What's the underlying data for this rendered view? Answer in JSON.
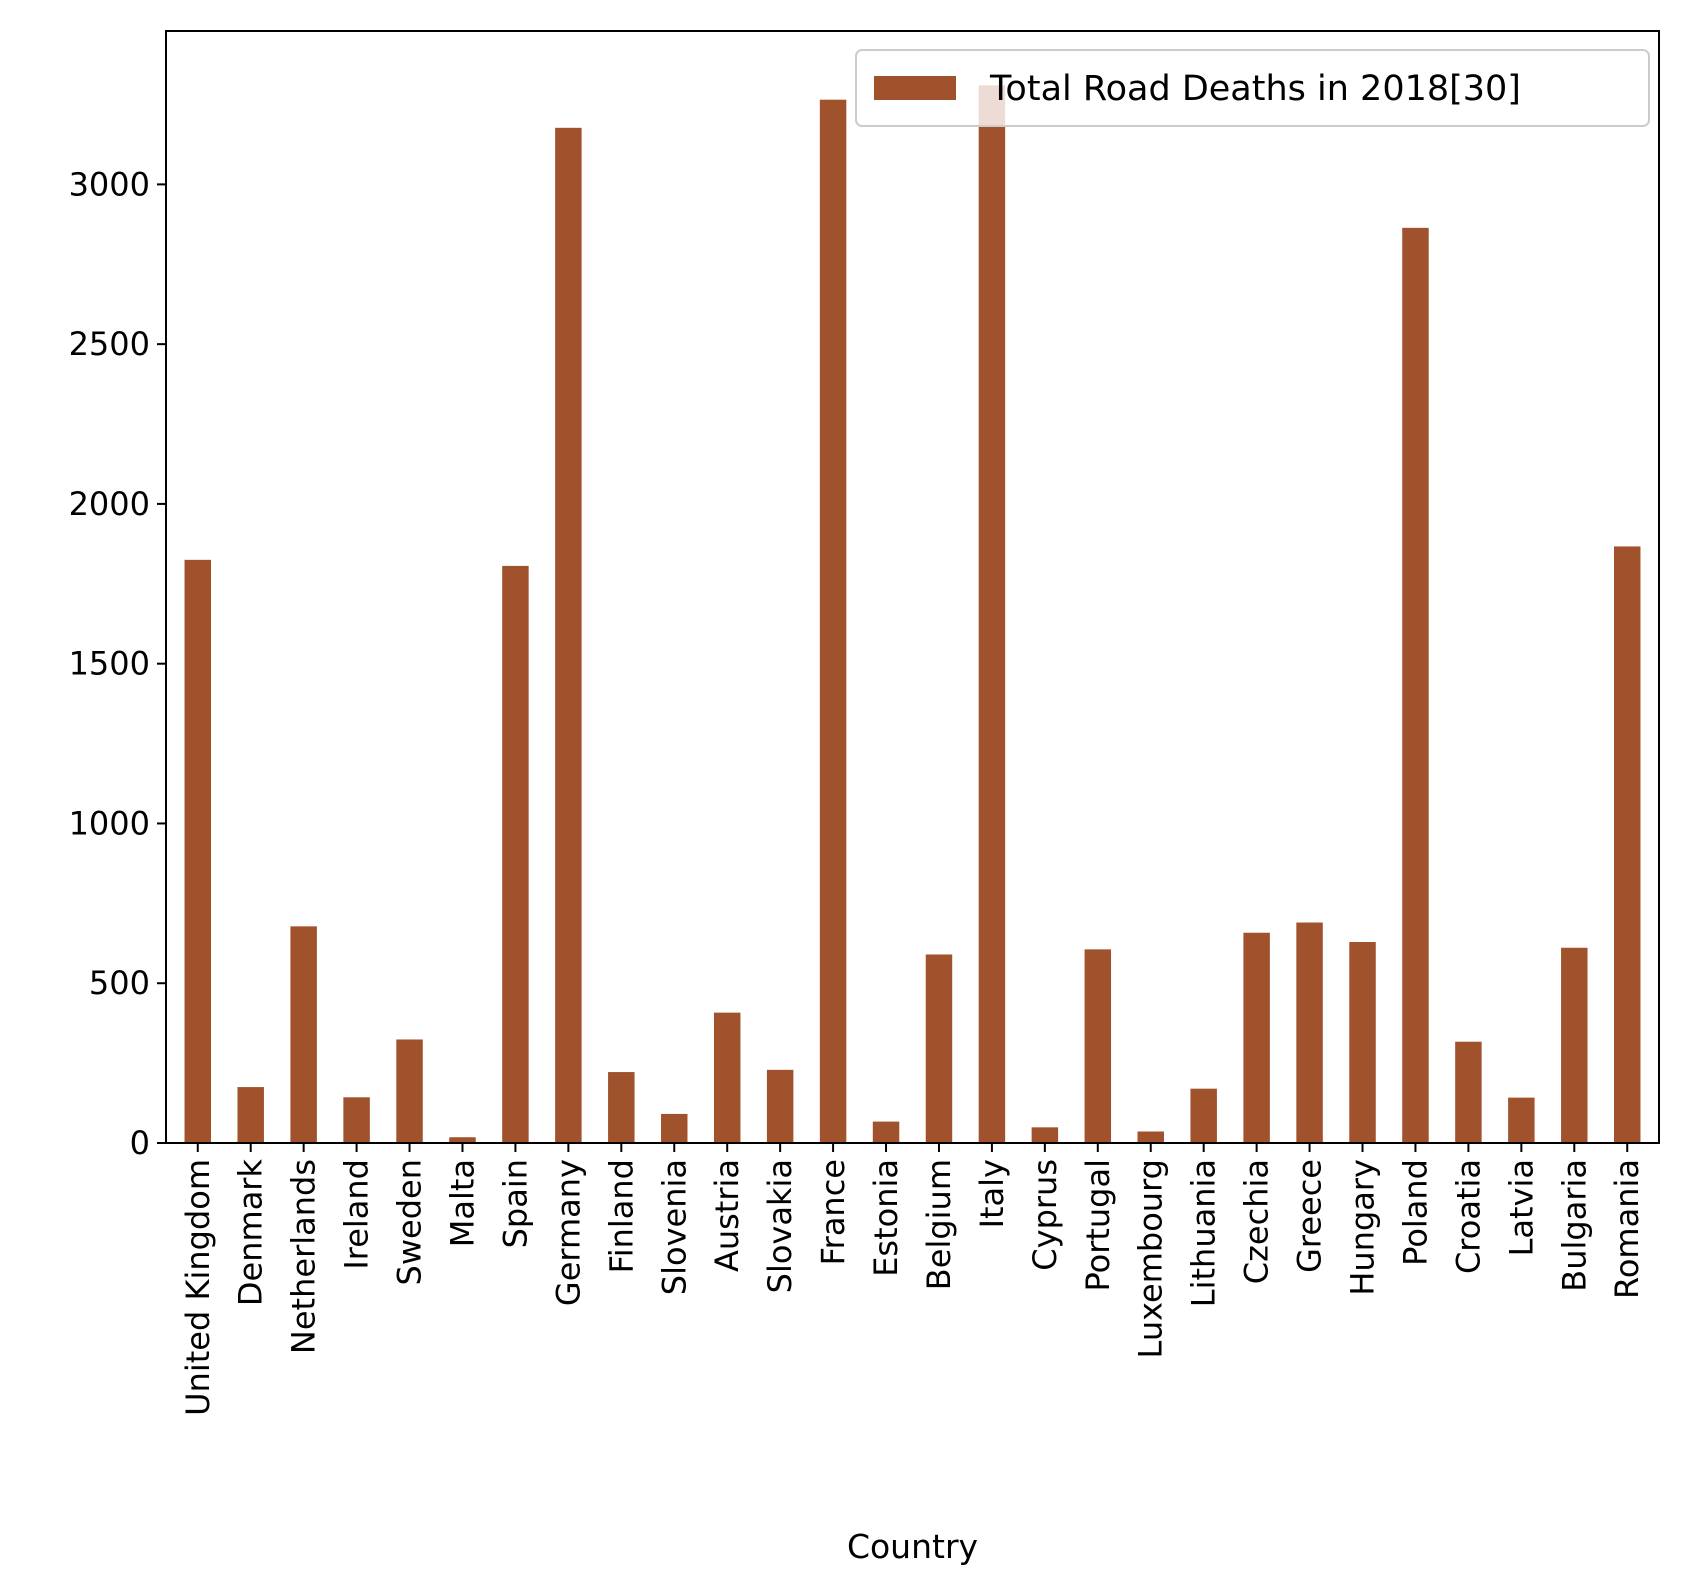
{
  "chart_data": {
    "type": "bar",
    "title": "",
    "xlabel": "Country",
    "ylabel": "",
    "ylim": [
      0,
      3480
    ],
    "yticks": [
      0,
      500,
      1000,
      1500,
      2000,
      2500,
      3000
    ],
    "grid": false,
    "legend_position": "top-right",
    "categories": [
      "United Kingdom",
      "Denmark",
      "Netherlands",
      "Ireland",
      "Sweden",
      "Malta",
      "Spain",
      "Germany",
      "Finland",
      "Slovenia",
      "Austria",
      "Slovakia",
      "France",
      "Estonia",
      "Belgium",
      "Italy",
      "Cyprus",
      "Portugal",
      "Luxembourg",
      "Lithuania",
      "Czechia",
      "Greece",
      "Hungary",
      "Poland",
      "Croatia",
      "Latvia",
      "Bulgaria",
      "Romania"
    ],
    "series": [
      {
        "name": "Total Road Deaths in 2018[30]",
        "color": "#a0522d",
        "values": [
          1825,
          175,
          678,
          143,
          324,
          18,
          1806,
          3177,
          222,
          91,
          408,
          229,
          3265,
          67,
          590,
          3310,
          49,
          606,
          36,
          170,
          658,
          690,
          629,
          2864,
          317,
          142,
          611,
          1867
        ]
      }
    ]
  }
}
